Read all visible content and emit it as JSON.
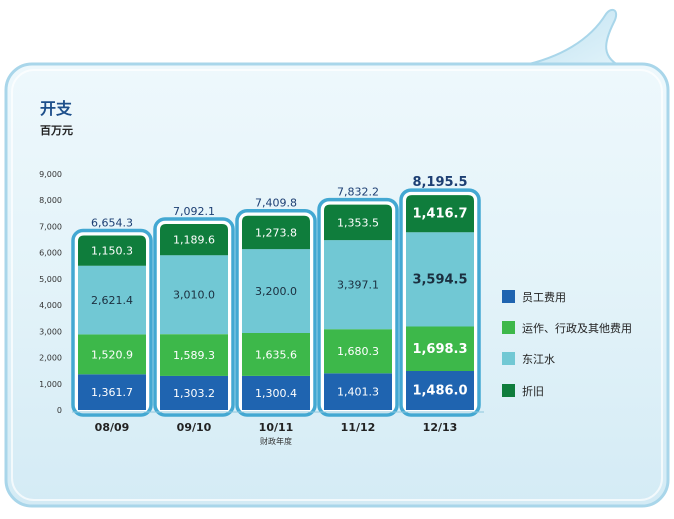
{
  "colors": {
    "bubble_fill": "#dceff7",
    "bubble_edge": "#9fcfe6",
    "frame": "#43a8d2",
    "title": "#1d4f8b",
    "total_text": "#1d3f73",
    "staff": "#1f64b0",
    "operations": "#3db84a",
    "water": "#71c8d4",
    "depreciation": "#0f7d3c",
    "axis_text": "#333333"
  },
  "chart_data": {
    "type": "bar",
    "stacked": true,
    "title": "开支",
    "subtitle": "百万元",
    "xlabel": "财政年度",
    "ylabel": "",
    "ylim": [
      0,
      9000
    ],
    "yticks": [
      "9,000",
      "8,000",
      "7,000",
      "6,000",
      "5,000",
      "4,000",
      "3,000",
      "2,000",
      "1,000",
      "0"
    ],
    "categories": [
      "08/09",
      "09/10",
      "10/11",
      "11/12",
      "12/13"
    ],
    "highlight_index": 4,
    "legend_position": "right",
    "series": [
      {
        "key": "staff",
        "name": "员工费用",
        "values": [
          1361.7,
          1303.2,
          1300.4,
          1401.3,
          1486.0
        ],
        "labels": [
          "1,361.7",
          "1,303.2",
          "1,300.4",
          "1,401.3",
          "1,486.0"
        ]
      },
      {
        "key": "operations",
        "name": "运作、行政及其他费用",
        "values": [
          1520.9,
          1589.3,
          1635.6,
          1680.3,
          1698.3
        ],
        "labels": [
          "1,520.9",
          "1,589.3",
          "1,635.6",
          "1,680.3",
          "1,698.3"
        ]
      },
      {
        "key": "water",
        "name": "东江水",
        "values": [
          2621.4,
          3010.0,
          3200.0,
          3397.1,
          3594.5
        ],
        "labels": [
          "2,621.4",
          "3,010.0",
          "3,200.0",
          "3,397.1",
          "3,594.5"
        ]
      },
      {
        "key": "depreciation",
        "name": "折旧",
        "values": [
          1150.3,
          1189.6,
          1273.8,
          1353.5,
          1416.7
        ],
        "labels": [
          "1,150.3",
          "1,189.6",
          "1,273.8",
          "1,353.5",
          "1,416.7"
        ]
      }
    ],
    "totals": [
      6654.3,
      7092.1,
      7409.8,
      7832.2,
      8195.5
    ],
    "total_labels": [
      "6,654.3",
      "7,092.1",
      "7,409.8",
      "7,832.2",
      "8,195.5"
    ]
  }
}
